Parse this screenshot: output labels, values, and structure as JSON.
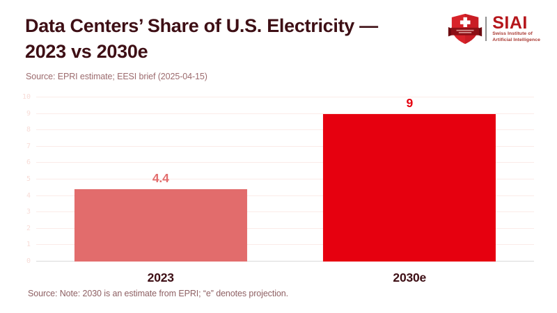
{
  "header": {
    "title_line1": "Data Centers’ Share of U.S. Electricity —",
    "title_line2": "2023 vs 2030e",
    "subtitle": "Source: EPRI estimate; EESI brief (2025-04-15)"
  },
  "logo": {
    "wordmark": "SIAI",
    "tagline_line1": "Swiss Institute of",
    "tagline_line2": "Artificial Intelligence"
  },
  "colors": {
    "title": "#3e0f15",
    "bar_2023": "#e26c6c",
    "bar_2030e": "#e6000f",
    "gridline": "#fbebe8",
    "axis_baseline": "#d9d9d9",
    "logo_red": "#b5161b",
    "shield_red": "#d8232a"
  },
  "chart_data": {
    "type": "bar",
    "title": "Data Centers’ Share of U.S. Electricity — 2023 vs 2030e",
    "categories": [
      "2023",
      "2030e"
    ],
    "values": [
      4.4,
      9
    ],
    "value_labels": [
      "4.4",
      "9"
    ],
    "bar_colors": [
      "#e26c6c",
      "#e6000f"
    ],
    "label_colors": [
      "#e26c6c",
      "#e6000f"
    ],
    "xlabel": "",
    "ylabel": "",
    "ylim": [
      0,
      10
    ],
    "yticks": [
      0,
      1,
      2,
      3,
      4,
      5,
      6,
      7,
      8,
      9,
      10
    ],
    "grid": true,
    "legend": false,
    "bar_width_frac": 0.694
  },
  "footer": {
    "note": "Source: Note: 2030 is an estimate from EPRI; “e” denotes projection."
  }
}
